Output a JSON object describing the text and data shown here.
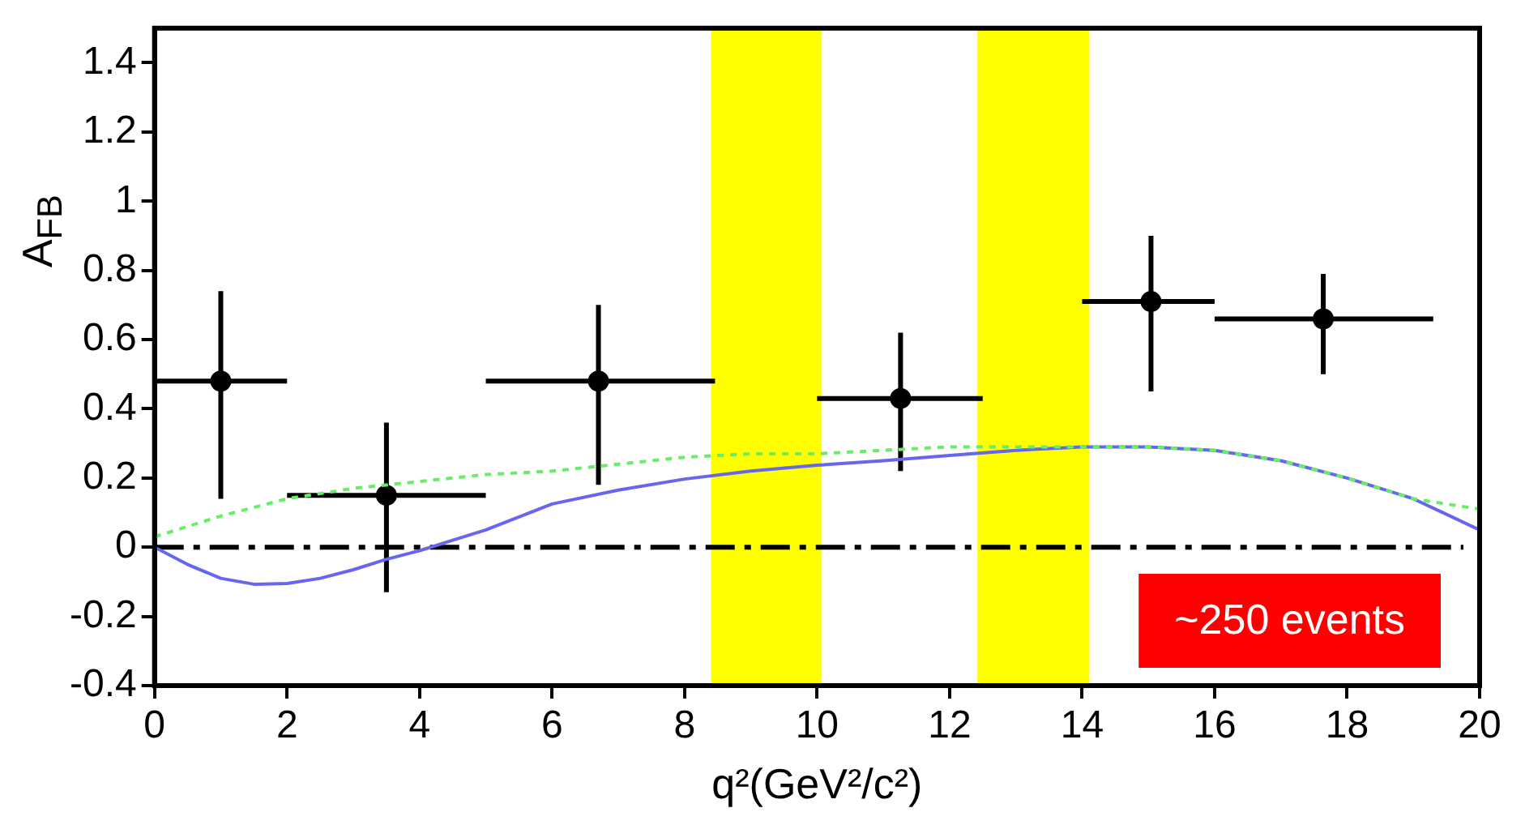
{
  "chart_data": {
    "type": "scatter",
    "xlabel": "q²(GeV²/c²)",
    "ylabel": "A$_{FB}$",
    "xlim": [
      0,
      20
    ],
    "xticks": [
      0,
      2,
      4,
      6,
      8,
      10,
      12,
      14,
      16,
      18,
      20
    ],
    "ylim": [
      -0.4,
      1.5
    ],
    "yticks": [
      -0.4,
      -0.2,
      0,
      0.2,
      0.4,
      0.6,
      0.8,
      1,
      1.2,
      1.4
    ],
    "grid": false,
    "legend": false,
    "bands": [
      {
        "axis": "x",
        "from": 8.4,
        "to": 10.07,
        "color": "#ffff00"
      },
      {
        "axis": "x",
        "from": 12.42,
        "to": 14.11,
        "color": "#ffff00"
      }
    ],
    "ref_lines": [
      {
        "axis": "y",
        "value": 0,
        "color": "#000000",
        "line_style": "dashed"
      }
    ],
    "annotations": [
      "~250 events"
    ],
    "series": [
      {
        "type": "line",
        "color": "#66ee66",
        "line_style": "dotted",
        "marker": "none",
        "x": [
          0,
          1,
          2,
          3,
          4,
          5,
          6,
          7,
          8,
          9,
          10,
          11,
          12,
          13,
          14,
          15,
          16,
          17,
          18,
          19,
          20
        ],
        "values": [
          0.03,
          0.09,
          0.14,
          0.17,
          0.19,
          0.21,
          0.22,
          0.24,
          0.26,
          0.27,
          0.27,
          0.28,
          0.29,
          0.29,
          0.29,
          0.29,
          0.28,
          0.25,
          0.2,
          0.14,
          0.11
        ]
      },
      {
        "type": "line",
        "color": "#6666ee",
        "line_style": "solid",
        "marker": "none",
        "x": [
          0,
          0.5,
          1,
          1.5,
          2,
          2.5,
          3,
          3.5,
          4,
          4.5,
          5,
          6,
          7,
          8,
          9,
          10,
          11,
          12,
          13,
          14,
          15,
          16,
          17,
          18,
          19,
          20
        ],
        "values": [
          0,
          -0.05,
          -0.09,
          -0.107,
          -0.105,
          -0.09,
          -0.065,
          -0.035,
          -0.01,
          0.02,
          0.05,
          0.125,
          0.165,
          0.197,
          0.22,
          0.237,
          0.25,
          0.265,
          0.28,
          0.29,
          0.29,
          0.28,
          0.25,
          0.2,
          0.14,
          0.05
        ]
      },
      {
        "type": "scatter",
        "color": "#000000",
        "marker": "circle",
        "x": [
          1,
          3.5,
          6.7,
          11.26,
          15.04,
          17.64
        ],
        "values": [
          0.48,
          0.15,
          0.48,
          0.43,
          0.71,
          0.66
        ],
        "errors": [
          [
            0.14,
            0.74
          ],
          [
            -0.13,
            0.36
          ],
          [
            0.18,
            0.7
          ],
          [
            0.22,
            0.62
          ],
          [
            0.45,
            0.9
          ],
          [
            0.5,
            0.79
          ]
        ],
        "xerrors": [
          [
            0,
            2
          ],
          [
            2,
            5
          ],
          [
            5,
            8.46
          ],
          [
            10,
            12.5
          ],
          [
            14,
            16
          ],
          [
            16,
            19.3
          ]
        ]
      }
    ]
  }
}
